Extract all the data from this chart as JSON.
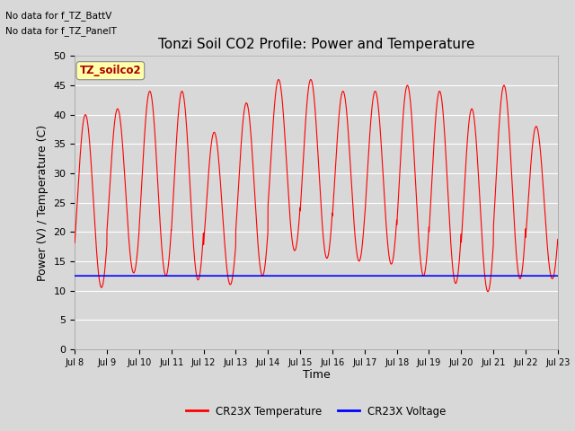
{
  "title": "Tonzi Soil CO2 Profile: Power and Temperature",
  "ylabel": "Power (V) / Temperature (C)",
  "xlabel": "Time",
  "top_left_text_line1": "No data for f_TZ_BattV",
  "top_left_text_line2": "No data for f_TZ_PanelT",
  "legend_box_label": "TZ_soilco2",
  "ylim": [
    0,
    50
  ],
  "yticks": [
    0,
    5,
    10,
    15,
    20,
    25,
    30,
    35,
    40,
    45,
    50
  ],
  "xtick_labels": [
    "Jul 8",
    "Jul 9",
    "Jul 10",
    "Jul 11",
    "Jul 12",
    "Jul 13",
    "Jul 14",
    "Jul 15",
    "Jul 16",
    "Jul 17",
    "Jul 18",
    "Jul 19",
    "Jul 20",
    "Jul 21",
    "Jul 22",
    "Jul 23"
  ],
  "bg_color": "#d8d8d8",
  "plot_bg_color": "#d8d8d8",
  "grid_color": "#ffffff",
  "temp_color": "#ff0000",
  "voltage_color": "#0000ff",
  "voltage_value": 12.5,
  "legend_labels": [
    "CR23X Temperature",
    "CR23X Voltage"
  ],
  "legend_colors": [
    "#ff0000",
    "#0000ff"
  ],
  "title_fontsize": 11,
  "axis_fontsize": 9,
  "tick_fontsize": 8,
  "legend_box_color": "#ffffaa",
  "legend_box_edge": "#888888",
  "temp_peaks": [
    40,
    41,
    44,
    44,
    37,
    42,
    46,
    46,
    44,
    44,
    45,
    44,
    41,
    45,
    38
  ],
  "temp_mins": [
    10.5,
    13.0,
    12.5,
    11.8,
    11.0,
    12.5,
    16.8,
    15.5,
    15.0,
    14.5,
    12.5,
    11.2,
    9.8,
    12.0,
    12.0
  ]
}
